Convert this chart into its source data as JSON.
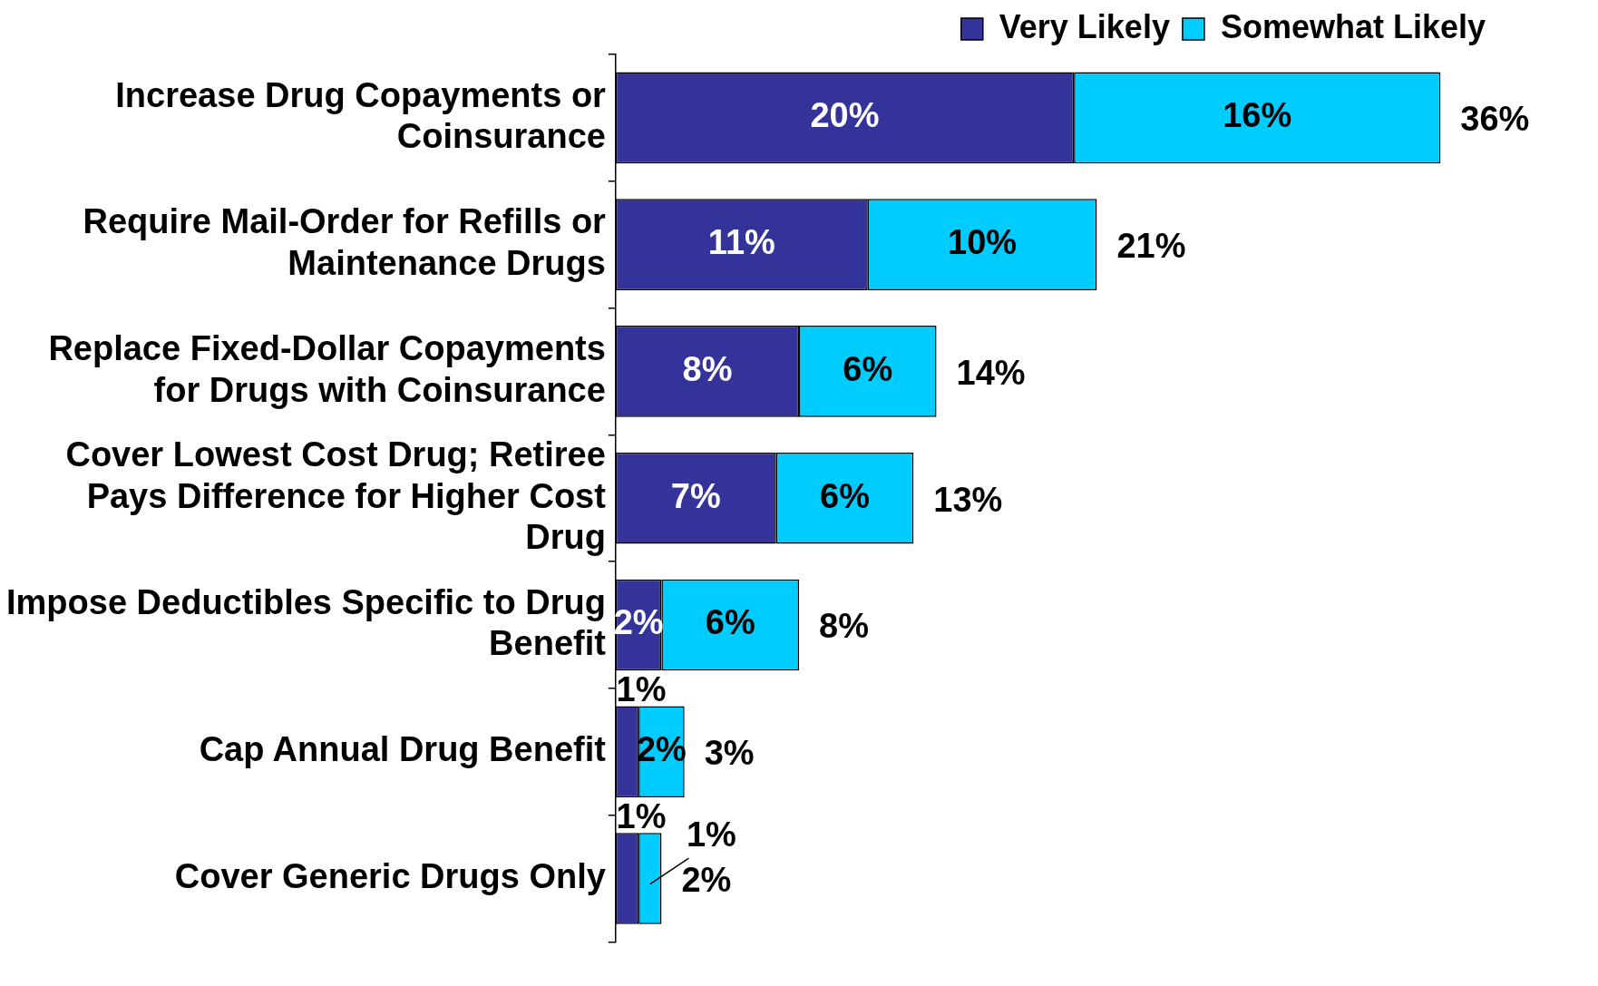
{
  "chart_data": {
    "type": "bar",
    "orientation": "horizontal",
    "stacked": true,
    "legend": "top right",
    "categories": [
      "Increase Drug Copayments or Coinsurance",
      "Require Mail-Order for Refills or Maintenance Drugs",
      "Replace Fixed-Dollar Copayments for Drugs with Coinsurance",
      "Cover Lowest Cost Drug; Retiree Pays Difference for Higher Cost Drug",
      "Impose Deductibles Specific to Drug Benefit",
      "Cap Annual Drug Benefit",
      "Cover Generic Drugs Only"
    ],
    "series": [
      {
        "name": "Very Likely",
        "color": "#333399",
        "values": [
          20,
          11,
          8,
          7,
          2,
          1,
          1
        ],
        "value_labels": [
          "20%",
          "11%",
          "8%",
          "7%",
          "2%",
          "1%",
          "1%"
        ]
      },
      {
        "name": "Somewhat Likely",
        "color": "#00ccff",
        "values": [
          16,
          10,
          6,
          6,
          6,
          2,
          1
        ],
        "value_labels": [
          "16%",
          "10%",
          "6%",
          "6%",
          "6%",
          "2%",
          "1%"
        ]
      }
    ],
    "totals": [
      "36%",
      "21%",
      "14%",
      "13%",
      "8%",
      "3%",
      "2%"
    ]
  }
}
